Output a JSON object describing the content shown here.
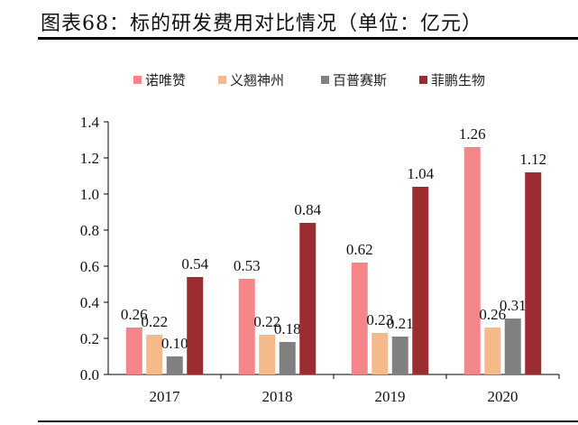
{
  "title": "图表68：标的研发费用对比情况（单位：亿元）",
  "chart_data": {
    "type": "bar",
    "categories": [
      "2017",
      "2018",
      "2019",
      "2020"
    ],
    "series": [
      {
        "name": "诺唯赞",
        "color": "#f4868a",
        "values": [
          0.26,
          0.53,
          0.62,
          1.26
        ]
      },
      {
        "name": "义翘神州",
        "color": "#f6b98a",
        "values": [
          0.22,
          0.22,
          0.23,
          0.26
        ]
      },
      {
        "name": "百普赛斯",
        "color": "#808080",
        "values": [
          0.1,
          0.18,
          0.21,
          0.31
        ]
      },
      {
        "name": "菲鹏生物",
        "color": "#9b2d30",
        "values": [
          0.54,
          0.84,
          1.04,
          1.12
        ]
      }
    ],
    "ylim": [
      0,
      1.4
    ],
    "yticks": [
      "0.0",
      "0.2",
      "0.4",
      "0.6",
      "0.8",
      "1.0",
      "1.2",
      "1.4"
    ],
    "grid": false,
    "legend": "top-center",
    "data_labels": true
  }
}
